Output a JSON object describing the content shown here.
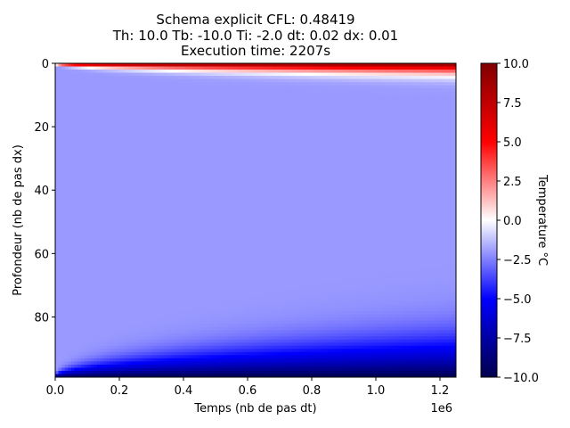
{
  "chart_data": {
    "type": "heatmap",
    "title_lines": [
      "Schema explicit CFL: 0.48419",
      "Th: 10.0 Tb: -10.0 Ti: -2.0 dt: 0.02 dx: 0.01",
      "Execution time: 2207s"
    ],
    "xlabel": "Temps (nb de pas dt)",
    "ylabel": "Profondeur (nb de pas dx)",
    "x_offset_label": "1e6",
    "xlim": [
      0,
      1250000
    ],
    "ylim": [
      99,
      0
    ],
    "x_ticks": [
      0.0,
      0.2,
      0.4,
      0.6,
      0.8,
      1.0,
      1.2
    ],
    "x_tick_labels": [
      "0.0",
      "0.2",
      "0.4",
      "0.6",
      "0.8",
      "1.0",
      "1.2"
    ],
    "y_ticks": [
      0,
      20,
      40,
      60,
      80
    ],
    "y_tick_labels": [
      "0",
      "20",
      "40",
      "60",
      "80"
    ],
    "colorbar": {
      "label": "Temperature °C",
      "colormap": "seismic",
      "range": [
        -10.0,
        10.0
      ],
      "ticks": [
        10.0,
        7.5,
        5.0,
        2.5,
        0.0,
        -2.5,
        -5.0,
        -7.5,
        -10.0
      ],
      "tick_labels": [
        "10.0",
        "7.5",
        "5.0",
        "2.5",
        "0.0",
        "−2.5",
        "−5.0",
        "−7.5",
        "−10.0"
      ]
    },
    "boundary_top_temperature": 10.0,
    "boundary_bottom_temperature": -10.0,
    "initial_temperature": -2.0,
    "grid": false
  }
}
